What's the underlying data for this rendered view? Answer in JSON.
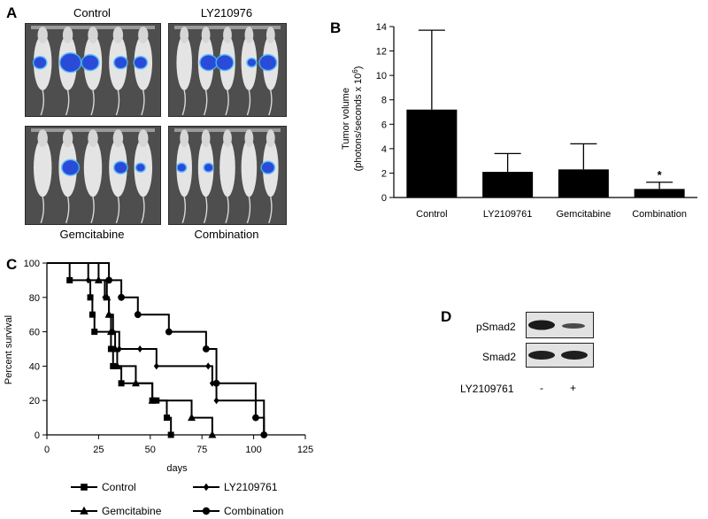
{
  "panels": {
    "a": "A",
    "b": "B",
    "c": "C",
    "d": "D"
  },
  "panel_a": {
    "images": [
      {
        "label": "Control",
        "signal": [
          2,
          4,
          3,
          2,
          2
        ]
      },
      {
        "label": "LY210976",
        "signal": [
          0,
          3,
          3,
          1,
          3
        ]
      },
      {
        "label": "Gemcitabine",
        "signal": [
          0,
          3,
          0,
          2,
          1
        ]
      },
      {
        "label": "Combination",
        "signal": [
          1,
          1,
          0,
          0,
          2
        ]
      }
    ],
    "colors": {
      "background": "#4e4e4e",
      "mouse": "#e4e4e4",
      "signal": "#2a4bd8",
      "signal_edge": "#46b7ff"
    }
  },
  "panel_d": {
    "rows": [
      "pSmad2",
      "Smad2"
    ],
    "treatment_label": "LY2109761",
    "lane_signs": [
      "-",
      "+"
    ]
  },
  "chart_data": [
    {
      "type": "bar",
      "panel": "B",
      "categories": [
        "Control",
        "LY2109761",
        "Gemcitabine",
        "Combination"
      ],
      "values": [
        7.2,
        2.1,
        2.3,
        0.7
      ],
      "error_upper": [
        13.7,
        3.6,
        4.4,
        1.25
      ],
      "ylabel_line1": "Tumor  volume",
      "ylabel_line2": "(photons/seconds x 10",
      "ylabel_sup": "6",
      "ylabel_close": ")",
      "ylim": [
        0,
        14
      ],
      "yticks": [
        "0",
        "2",
        "4",
        "6",
        "8",
        "10",
        "12",
        "14"
      ],
      "annotations": [
        {
          "category": "Combination",
          "text": "*"
        }
      ],
      "bar_color": "#000000"
    },
    {
      "type": "line",
      "panel": "C",
      "xlabel": "days",
      "ylabel": "Percent  survival",
      "xlim": [
        0,
        125
      ],
      "ylim": [
        0,
        100
      ],
      "xticks": [
        "0",
        "25",
        "50",
        "75",
        "100",
        "125"
      ],
      "yticks": [
        "0",
        "20",
        "40",
        "60",
        "80",
        "100"
      ],
      "series": [
        {
          "name": "Control",
          "marker": "square",
          "steps": [
            [
              0,
              100
            ],
            [
              11,
              90
            ],
            [
              21,
              80
            ],
            [
              22,
              70
            ],
            [
              23,
              60
            ],
            [
              31,
              50
            ],
            [
              32,
              40
            ],
            [
              36,
              30
            ],
            [
              51,
              20
            ],
            [
              53,
              20
            ],
            [
              58,
              10
            ],
            [
              60,
              0
            ]
          ]
        },
        {
          "name": "LY2109761",
          "marker": "diamond",
          "steps": [
            [
              0,
              100
            ],
            [
              20,
              90
            ],
            [
              28,
              80
            ],
            [
              30,
              70
            ],
            [
              32,
              60
            ],
            [
              35,
              50
            ],
            [
              45,
              50
            ],
            [
              53,
              40
            ],
            [
              78,
              40
            ],
            [
              80,
              30
            ],
            [
              82,
              20
            ],
            [
              105,
              0
            ]
          ]
        },
        {
          "name": "Gemcitabine",
          "marker": "triangle",
          "steps": [
            [
              0,
              100
            ],
            [
              25,
              90
            ],
            [
              29,
              80
            ],
            [
              30,
              70
            ],
            [
              31,
              60
            ],
            [
              33,
              50
            ],
            [
              34,
              40
            ],
            [
              43,
              30
            ],
            [
              51,
              20
            ],
            [
              70,
              10
            ],
            [
              80,
              0
            ]
          ]
        },
        {
          "name": "Combination",
          "marker": "circle",
          "steps": [
            [
              0,
              100
            ],
            [
              30,
              90
            ],
            [
              36,
              80
            ],
            [
              44,
              70
            ],
            [
              59,
              60
            ],
            [
              77,
              50
            ],
            [
              82,
              30
            ],
            [
              101,
              10
            ],
            [
              105,
              0
            ]
          ]
        }
      ],
      "legend": [
        {
          "name": "Control",
          "marker": "square"
        },
        {
          "name": "LY2109761",
          "marker": "diamond"
        },
        {
          "name": "Gemcitabine",
          "marker": "triangle"
        },
        {
          "name": "Combination",
          "marker": "circle"
        }
      ]
    }
  ]
}
